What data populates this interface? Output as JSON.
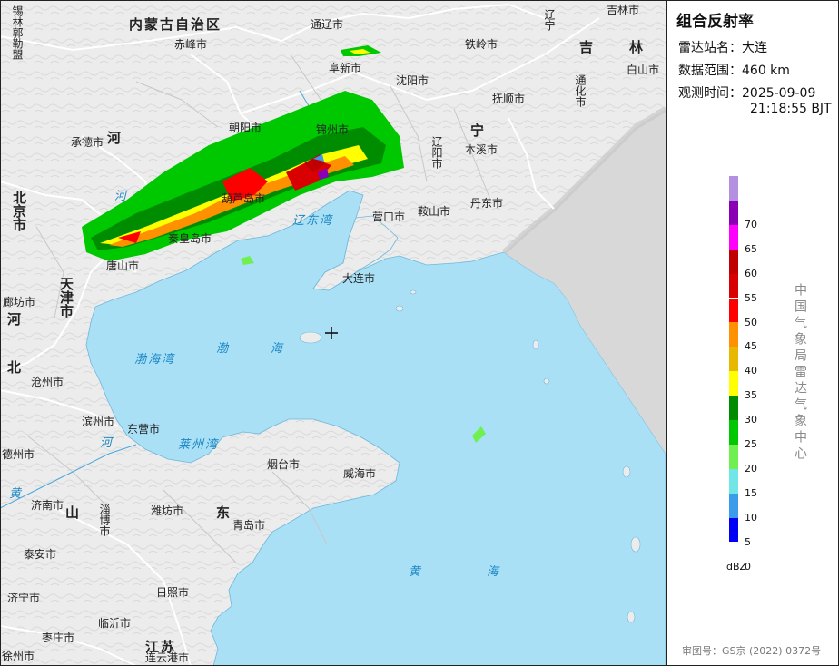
{
  "panel": {
    "title": "组合反射率",
    "station_label": "雷达站名：",
    "station": "大连",
    "range_label": "数据范围：",
    "range": "460 km",
    "time_label": "观测时间：",
    "time_date": "2025-09-09",
    "time_clock": "21:18:55 BJT",
    "unit": "dBZ",
    "agency": "中国气象局雷达气象中心",
    "footer": "审图号：GS京 (2022) 0372号"
  },
  "legend": [
    {
      "label": "",
      "color": "#b490e0"
    },
    {
      "label": "70",
      "color": "#8a00b4"
    },
    {
      "label": "65",
      "color": "#ff00ff"
    },
    {
      "label": "60",
      "color": "#c00000"
    },
    {
      "label": "55",
      "color": "#d80000"
    },
    {
      "label": "50",
      "color": "#ff0000"
    },
    {
      "label": "45",
      "color": "#ff9000"
    },
    {
      "label": "40",
      "color": "#e6b800"
    },
    {
      "label": "35",
      "color": "#ffff00"
    },
    {
      "label": "30",
      "color": "#008c00"
    },
    {
      "label": "25",
      "color": "#00c800"
    },
    {
      "label": "20",
      "color": "#70ef50"
    },
    {
      "label": "15",
      "color": "#70e6e6"
    },
    {
      "label": "10",
      "color": "#3c9cec"
    },
    {
      "label": "5",
      "color": "#0000f6"
    },
    {
      "label": "0",
      "color": ""
    }
  ],
  "map": {
    "provinces": [
      "内蒙古自治区",
      "河",
      "北京市",
      "天津市",
      "河",
      "北",
      "宁",
      "吉",
      "林",
      "山",
      "东",
      "江苏"
    ],
    "vertical_labels": [
      "锡林郭勒盟",
      "辽宁",
      "通化市",
      "辽阳市"
    ],
    "cities": [
      "通辽市",
      "吉林市",
      "赤峰市",
      "阜新市",
      "铁岭市",
      "白山市",
      "沈阳市",
      "抚顺市",
      "承德市",
      "朝阳市",
      "本溪市",
      "锦州市",
      "葫芦岛市",
      "营口市",
      "鞍山市",
      "丹东市",
      "秦皇岛市",
      "唐山市",
      "大连市",
      "廊坊市",
      "沧州市",
      "滨州市",
      "东营市",
      "德州市",
      "烟台市",
      "威海市",
      "济南市",
      "淄博市",
      "潍坊市",
      "青岛市",
      "泰安市",
      "日照市",
      "济宁市",
      "临沂市",
      "枣庄市",
      "徐州市",
      "连云港市"
    ],
    "seas": [
      "辽东湾",
      "渤海湾",
      "渤",
      "海",
      "莱州湾",
      "黄",
      "海",
      "河",
      "河",
      "黄"
    ],
    "colors": {
      "land": "#ececec",
      "sea": "#a9e0f6",
      "border": "#ffffff",
      "offshore": "#dcdcdc"
    }
  }
}
